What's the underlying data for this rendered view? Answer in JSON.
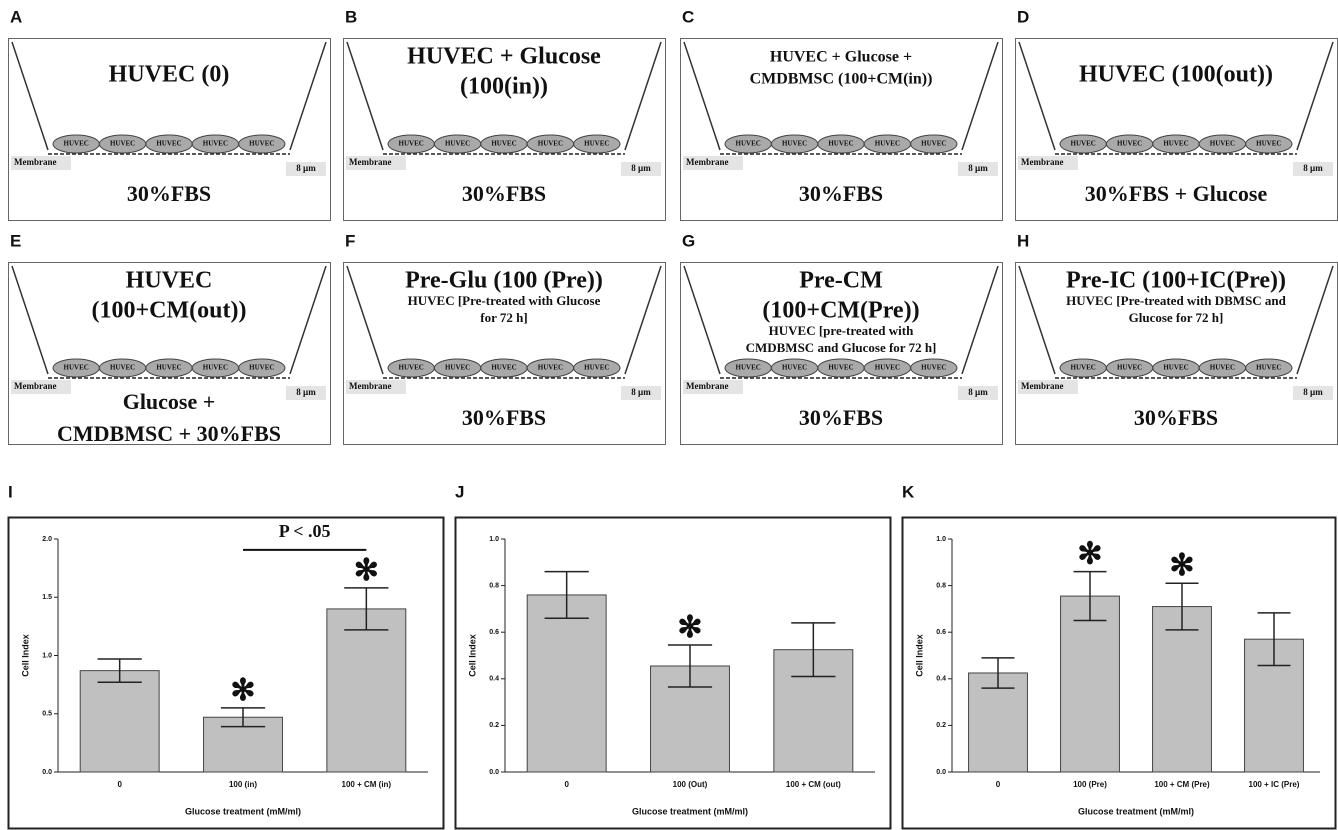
{
  "diagrams": [
    {
      "letter": "A",
      "title": [
        "HUVEC (0)"
      ],
      "cells": [
        "HUVEC",
        "HUVEC",
        "HUVEC",
        "HUVEC",
        "HUVEC"
      ],
      "membrane": "Membrane",
      "pore": "8 µm",
      "bottom": [
        "30%FBS"
      ]
    },
    {
      "letter": "B",
      "title": [
        "HUVEC + Glucose",
        "(100(in))"
      ],
      "cells": [
        "HUVEC",
        "HUVEC",
        "HUVEC",
        "HUVEC",
        "HUVEC"
      ],
      "membrane": "Membrane",
      "pore": "8 µm",
      "bottom": [
        "30%FBS"
      ]
    },
    {
      "letter": "C",
      "title": [
        "HUVEC + Glucose +",
        "CMDBMSC (100+CM(in))"
      ],
      "cells": [
        "HUVEC",
        "HUVEC",
        "HUVEC",
        "HUVEC",
        "HUVEC"
      ],
      "membrane": "Membrane",
      "pore": "8 µm",
      "bottom": [
        "30%FBS"
      ]
    },
    {
      "letter": "D",
      "title": [
        "HUVEC (100(out))"
      ],
      "cells": [
        "HUVEC",
        "HUVEC",
        "HUVEC",
        "HUVEC",
        "HUVEC"
      ],
      "membrane": "Membrane",
      "pore": "8 µm",
      "bottom": [
        "30%FBS + Glucose"
      ]
    },
    {
      "letter": "E",
      "title": [
        "HUVEC",
        "(100+CM(out))"
      ],
      "cells": [
        "HUVEC",
        "HUVEC",
        "HUVEC",
        "HUVEC",
        "HUVEC"
      ],
      "membrane": "Membrane",
      "pore": "8 µm",
      "bottom": [
        "Glucose +",
        "CMDBMSC + 30%FBS"
      ]
    },
    {
      "letter": "F",
      "title": [
        "Pre-Glu (100 (Pre))"
      ],
      "subtitle": [
        "HUVEC [Pre-treated with Glucose",
        "for 72 h]"
      ],
      "cells": [
        "HUVEC",
        "HUVEC",
        "HUVEC",
        "HUVEC",
        "HUVEC"
      ],
      "membrane": "Membrane",
      "pore": "8 µm",
      "bottom": [
        "30%FBS"
      ]
    },
    {
      "letter": "G",
      "title": [
        "Pre-CM",
        "(100+CM(Pre))"
      ],
      "subtitle": [
        "HUVEC [pre-treated with",
        "CMDBMSC and Glucose for 72 h]"
      ],
      "cells": [
        "HUVEC",
        "HUVEC",
        "HUVEC",
        "HUVEC",
        "HUVEC"
      ],
      "membrane": "Membrane",
      "pore": "8 µm",
      "bottom": [
        "30%FBS"
      ]
    },
    {
      "letter": "H",
      "title": [
        "Pre-IC (100+IC(Pre))"
      ],
      "subtitle": [
        "HUVEC [Pre-treated with DBMSC and",
        "Glucose for 72 h]"
      ],
      "cells": [
        "HUVEC",
        "HUVEC",
        "HUVEC",
        "HUVEC",
        "HUVEC"
      ],
      "membrane": "Membrane",
      "pore": "8 µm",
      "bottom": [
        "30%FBS"
      ]
    }
  ],
  "chart_data": [
    {
      "type": "bar",
      "letter": "I",
      "categories": [
        "0",
        "100 (in)",
        "100 + CM (in)"
      ],
      "values": [
        0.87,
        0.47,
        1.4
      ],
      "errors": [
        0.1,
        0.08,
        0.18
      ],
      "markers": [
        null,
        "✻",
        "✻"
      ],
      "bracket": {
        "categories": [
          "100 (in)",
          "100 + CM (in)"
        ],
        "label": "P < .05"
      },
      "color": "#c0c0c0",
      "ylim": [
        0,
        2
      ],
      "yticks": [
        {
          "value": 0,
          "label": "0.0"
        },
        0.5,
        {
          "value": 1,
          "label": "1.0"
        },
        1.5,
        {
          "value": 2,
          "label": "2.0"
        }
      ],
      "ylabel": "Cell Index",
      "xlabel": "Glucose treatment (mM/ml)"
    },
    {
      "type": "bar",
      "letter": "J",
      "categories": [
        "0",
        "100 (Out)",
        "100 + CM (out)"
      ],
      "values": [
        0.76,
        0.455,
        0.525
      ],
      "errors": [
        0.1,
        0.09,
        0.115
      ],
      "markers": [
        null,
        "✻",
        null
      ],
      "color": "#c0c0c0",
      "ylim": [
        0,
        1
      ],
      "yticks": [
        {
          "value": 0,
          "label": "0.0"
        },
        0.2,
        0.4,
        0.6,
        0.8,
        {
          "value": 1,
          "label": "1.0"
        }
      ],
      "ylabel": "Cell Index",
      "xlabel": "Glucose treatment (mM/ml)"
    },
    {
      "type": "bar",
      "letter": "K",
      "categories": [
        "0",
        "100 (Pre)",
        "100 + CM (Pre)",
        "100 + IC (Pre)"
      ],
      "values": [
        0.425,
        0.755,
        0.71,
        0.57
      ],
      "errors": [
        0.065,
        0.105,
        0.1,
        0.113
      ],
      "markers": [
        null,
        "✻",
        "✻",
        null
      ],
      "color": "#c0c0c0",
      "ylim": [
        0,
        1
      ],
      "yticks": [
        {
          "value": 0,
          "label": "0.0"
        },
        0.2,
        0.4,
        0.6,
        0.8,
        {
          "value": 1,
          "label": "1.0"
        }
      ],
      "ylabel": "Cell Index",
      "xlabel": "Glucose treatment (mM/ml)"
    }
  ]
}
